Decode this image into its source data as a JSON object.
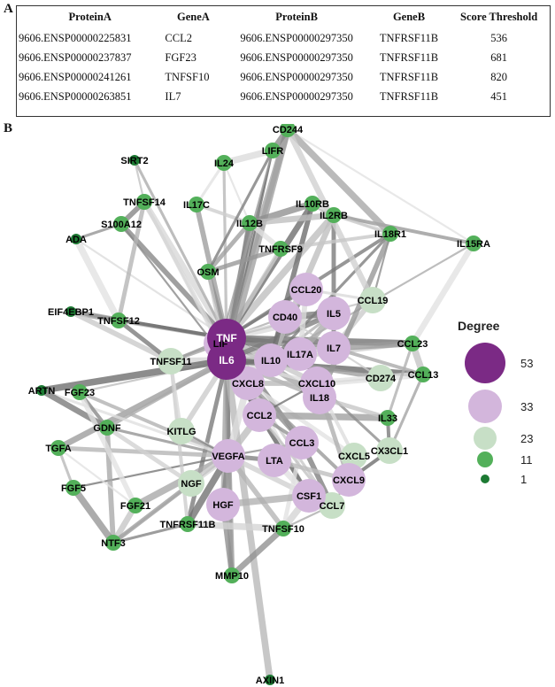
{
  "panels": {
    "a": "A",
    "b": "B"
  },
  "table": {
    "headers": [
      "ProteinA",
      "GeneA",
      "ProteinB",
      "GeneB",
      "Score Threshold"
    ],
    "rows": [
      [
        "9606.ENSP00000225831",
        "CCL2",
        "9606.ENSP00000297350",
        "TNFRSF11B",
        "536"
      ],
      [
        "9606.ENSP00000237837",
        "FGF23",
        "9606.ENSP00000297350",
        "TNFRSF11B",
        "681"
      ],
      [
        "9606.ENSP00000241261",
        "TNFSF10",
        "9606.ENSP00000297350",
        "TNFRSF11B",
        "820"
      ],
      [
        "9606.ENSP00000263851",
        "IL7",
        "9606.ENSP00000297350",
        "TNFRSF11B",
        "451"
      ]
    ]
  },
  "legend": {
    "title": "Degree",
    "levels": [
      {
        "value": "53",
        "color": "#7b2a85"
      },
      {
        "value": "33",
        "color": "#d3b6dc"
      },
      {
        "value": "23",
        "color": "#c7dfc6"
      },
      {
        "value": "11",
        "color": "#53b05a"
      },
      {
        "value": "1",
        "color": "#1d7a33"
      }
    ]
  },
  "network": {
    "nodes": [
      {
        "label": "CD244",
        "tier": "11"
      },
      {
        "label": "SIRT2",
        "tier": "1"
      },
      {
        "label": "IL24",
        "tier": "11"
      },
      {
        "label": "LIFR",
        "tier": "11"
      },
      {
        "label": "TNFSF14",
        "tier": "11"
      },
      {
        "label": "IL17C",
        "tier": "11"
      },
      {
        "label": "IL10RB",
        "tier": "11"
      },
      {
        "label": "S100A12",
        "tier": "11"
      },
      {
        "label": "IL12B",
        "tier": "11"
      },
      {
        "label": "IL2RB",
        "tier": "11"
      },
      {
        "label": "ADA",
        "tier": "1"
      },
      {
        "label": "IL18R1",
        "tier": "11"
      },
      {
        "label": "IL15RA",
        "tier": "11"
      },
      {
        "label": "TNFRSF9",
        "tier": "11"
      },
      {
        "label": "OSM",
        "tier": "11"
      },
      {
        "label": "CCL20",
        "tier": "33"
      },
      {
        "label": "CCL19",
        "tier": "23"
      },
      {
        "label": "EIF4EBP1",
        "tier": "1"
      },
      {
        "label": "TNFSF12",
        "tier": "11"
      },
      {
        "label": "CD40",
        "tier": "33"
      },
      {
        "label": "IL5",
        "tier": "33"
      },
      {
        "label": "TNF",
        "tier": "53"
      },
      {
        "label": "LIF",
        "tier": "33"
      },
      {
        "label": "IL6",
        "tier": "53"
      },
      {
        "label": "IL10",
        "tier": "33"
      },
      {
        "label": "IL17A",
        "tier": "33"
      },
      {
        "label": "IL7",
        "tier": "33"
      },
      {
        "label": "CCL23",
        "tier": "11"
      },
      {
        "label": "TNFSF11",
        "tier": "23"
      },
      {
        "label": "CD274",
        "tier": "23"
      },
      {
        "label": "CCL13",
        "tier": "11"
      },
      {
        "label": "CXCL8",
        "tier": "33"
      },
      {
        "label": "CXCL10",
        "tier": "33"
      },
      {
        "label": "IL18",
        "tier": "33"
      },
      {
        "label": "ARTN",
        "tier": "1"
      },
      {
        "label": "FGF23",
        "tier": "11"
      },
      {
        "label": "CCL2",
        "tier": "33"
      },
      {
        "label": "IL33",
        "tier": "11"
      },
      {
        "label": "GDNF",
        "tier": "11"
      },
      {
        "label": "KITLG",
        "tier": "23"
      },
      {
        "label": "TGFA",
        "tier": "11"
      },
      {
        "label": "VEGFA",
        "tier": "33"
      },
      {
        "label": "CCL3",
        "tier": "33"
      },
      {
        "label": "CXCL5",
        "tier": "23"
      },
      {
        "label": "CX3CL1",
        "tier": "23"
      },
      {
        "label": "LTA",
        "tier": "33"
      },
      {
        "label": "FGF5",
        "tier": "11"
      },
      {
        "label": "NGF",
        "tier": "23"
      },
      {
        "label": "CXCL9",
        "tier": "33"
      },
      {
        "label": "FGF21",
        "tier": "11"
      },
      {
        "label": "HGF",
        "tier": "33"
      },
      {
        "label": "CSF1",
        "tier": "33"
      },
      {
        "label": "CCL7",
        "tier": "23"
      },
      {
        "label": "TNFRSF11B",
        "tier": "11"
      },
      {
        "label": "NTF3",
        "tier": "11"
      },
      {
        "label": "TNFSF10",
        "tier": "11"
      },
      {
        "label": "MMP10",
        "tier": "11"
      },
      {
        "label": "AXIN1",
        "tier": "1"
      }
    ],
    "edges": [
      [
        "TNF",
        "IL6"
      ],
      [
        "TNF",
        "IL10"
      ],
      [
        "TNF",
        "CXCL8"
      ],
      [
        "TNF",
        "IL17A"
      ],
      [
        "TNF",
        "CCL2"
      ],
      [
        "TNF",
        "VEGFA"
      ],
      [
        "TNF",
        "CCL20"
      ],
      [
        "TNF",
        "CD40"
      ],
      [
        "TNF",
        "IL5"
      ],
      [
        "TNF",
        "IL7"
      ],
      [
        "TNF",
        "LIF"
      ],
      [
        "TNF",
        "OSM"
      ],
      [
        "TNF",
        "IL12B"
      ],
      [
        "TNF",
        "IL24"
      ],
      [
        "TNF",
        "LIFR"
      ],
      [
        "TNF",
        "CD244"
      ],
      [
        "TNF",
        "TNFSF14"
      ],
      [
        "TNF",
        "S100A12"
      ],
      [
        "TNF",
        "TNFSF12"
      ],
      [
        "TNF",
        "EIF4EBP1"
      ],
      [
        "TNF",
        "TNFSF11"
      ],
      [
        "TNF",
        "CCL19"
      ],
      [
        "TNF",
        "CCL23"
      ],
      [
        "TNF",
        "IL18"
      ],
      [
        "TNF",
        "CXCL10"
      ],
      [
        "TNF",
        "CCL3"
      ],
      [
        "TNF",
        "HGF"
      ],
      [
        "TNF",
        "CSF1"
      ],
      [
        "TNF",
        "MMP10"
      ],
      [
        "TNF",
        "IL2RB"
      ],
      [
        "TNF",
        "IL10RB"
      ],
      [
        "TNF",
        "IL17C"
      ],
      [
        "TNF",
        "TNFRSF9"
      ],
      [
        "TNF",
        "IL18R1"
      ],
      [
        "TNF",
        "SIRT2"
      ],
      [
        "TNF",
        "ADA"
      ],
      [
        "IL6",
        "IL10"
      ],
      [
        "IL6",
        "CXCL8"
      ],
      [
        "IL6",
        "VEGFA"
      ],
      [
        "IL6",
        "CCL2"
      ],
      [
        "IL6",
        "OSM"
      ],
      [
        "IL6",
        "LIF"
      ],
      [
        "IL6",
        "IL17A"
      ],
      [
        "IL6",
        "TNFSF11"
      ],
      [
        "IL6",
        "IL12B"
      ],
      [
        "IL6",
        "HGF"
      ],
      [
        "IL6",
        "CSF1"
      ],
      [
        "IL6",
        "MMP10"
      ],
      [
        "IL6",
        "IL24"
      ],
      [
        "IL6",
        "LIFR"
      ],
      [
        "IL6",
        "CD244"
      ],
      [
        "IL6",
        "IL7"
      ],
      [
        "IL6",
        "IL5"
      ],
      [
        "IL6",
        "IL18"
      ],
      [
        "IL6",
        "CXCL10"
      ],
      [
        "IL6",
        "CCL3"
      ],
      [
        "IL6",
        "FGF23"
      ],
      [
        "IL6",
        "ARTN"
      ],
      [
        "IL6",
        "TGFA"
      ],
      [
        "IL6",
        "KITLG"
      ],
      [
        "IL6",
        "TNFRSF11B"
      ],
      [
        "IL6",
        "GDNF"
      ],
      [
        "IL6",
        "TNFSF14"
      ],
      [
        "IL6",
        "S100A12"
      ],
      [
        "IL6",
        "AXIN1"
      ],
      [
        "IL6",
        "CCL13"
      ],
      [
        "IL10",
        "IL17A"
      ],
      [
        "IL10",
        "CXCL10"
      ],
      [
        "IL10",
        "CCL20"
      ],
      [
        "IL10",
        "IL5"
      ],
      [
        "IL10",
        "IL7"
      ],
      [
        "IL10",
        "CD40"
      ],
      [
        "IL10",
        "IL2RB"
      ],
      [
        "IL10",
        "IL10RB"
      ],
      [
        "IL10",
        "CD274"
      ],
      [
        "IL10",
        "CCL23"
      ],
      [
        "IL10",
        "IL18R1"
      ],
      [
        "IL10",
        "IL15RA"
      ],
      [
        "CXCL8",
        "VEGFA"
      ],
      [
        "CXCL8",
        "CCL2"
      ],
      [
        "CXCL8",
        "CXCL10"
      ],
      [
        "CXCL8",
        "CXCL5"
      ],
      [
        "CXCL8",
        "CXCL9"
      ],
      [
        "CXCL8",
        "CCL7"
      ],
      [
        "VEGFA",
        "FGF5"
      ],
      [
        "VEGFA",
        "FGF21"
      ],
      [
        "VEGFA",
        "NGF"
      ],
      [
        "VEGFA",
        "HGF"
      ],
      [
        "VEGFA",
        "TGFA"
      ],
      [
        "VEGFA",
        "KITLG"
      ],
      [
        "VEGFA",
        "GDNF"
      ],
      [
        "VEGFA",
        "NTF3"
      ],
      [
        "VEGFA",
        "TNFRSF11B"
      ],
      [
        "VEGFA",
        "MMP10"
      ],
      [
        "VEGFA",
        "CSF1"
      ],
      [
        "VEGFA",
        "LTA"
      ],
      [
        "VEGFA",
        "FGF23"
      ],
      [
        "VEGFA",
        "ARTN"
      ],
      [
        "VEGFA",
        "CCL3"
      ],
      [
        "VEGFA",
        "CCL2"
      ],
      [
        "GDNF",
        "ARTN"
      ],
      [
        "GDNF",
        "NTF3"
      ],
      [
        "GDNF",
        "NGF"
      ],
      [
        "GDNF",
        "FGF23"
      ],
      [
        "TGFA",
        "FGF5"
      ],
      [
        "TGFA",
        "FGF21"
      ],
      [
        "FGF5",
        "NTF3"
      ],
      [
        "FGF21",
        "NTF3"
      ],
      [
        "FGF23",
        "FGF21"
      ],
      [
        "NGF",
        "NTF3"
      ],
      [
        "TNFRSF11B",
        "TNFSF11"
      ],
      [
        "TNFRSF11B",
        "NTF3"
      ],
      [
        "TNFSF10",
        "CCL7"
      ],
      [
        "TNFSF10",
        "CSF1"
      ],
      [
        "TNFSF10",
        "MMP10"
      ],
      [
        "TNFSF10",
        "VEGFA"
      ],
      [
        "TNFSF10",
        "CCL3"
      ],
      [
        "CCL2",
        "CCL3"
      ],
      [
        "CCL2",
        "CCL7"
      ],
      [
        "CCL2",
        "CXCL10"
      ],
      [
        "CCL2",
        "IL33"
      ],
      [
        "CCL3",
        "LTA"
      ],
      [
        "CCL3",
        "CCL7"
      ],
      [
        "CXCL10",
        "CXCL9"
      ],
      [
        "CXCL10",
        "CXCL5"
      ],
      [
        "CXCL10",
        "CX3CL1"
      ],
      [
        "CXCL10",
        "CD274"
      ],
      [
        "CXCL10",
        "CCL13"
      ],
      [
        "IL7",
        "CCL23"
      ],
      [
        "IL7",
        "CCL19"
      ],
      [
        "IL7",
        "IL2RB"
      ],
      [
        "IL7",
        "CCL13"
      ],
      [
        "CCL19",
        "CCL20"
      ],
      [
        "CCL19",
        "IL18R1"
      ],
      [
        "CCL23",
        "CCL13"
      ],
      [
        "CCL23",
        "IL15RA"
      ],
      [
        "IL18",
        "IL18R1"
      ],
      [
        "IL18",
        "IL33"
      ],
      [
        "IL33",
        "CX3CL1"
      ],
      [
        "IL33",
        "CCL23"
      ],
      [
        "IL12B",
        "IL24"
      ],
      [
        "IL12B",
        "IL10RB"
      ],
      [
        "IL12B",
        "IL2RB"
      ],
      [
        "IL12B",
        "TNFRSF9"
      ],
      [
        "IL12B",
        "OSM"
      ],
      [
        "IL12B",
        "IL17C"
      ],
      [
        "LIFR",
        "OSM"
      ],
      [
        "LIFR",
        "LIF"
      ],
      [
        "LIFR",
        "IL24"
      ],
      [
        "LIFR",
        "CD244"
      ],
      [
        "IL10RB",
        "IL2RB"
      ],
      [
        "IL10RB",
        "IL18R1"
      ],
      [
        "IL2RB",
        "IL15RA"
      ],
      [
        "IL2RB",
        "IL18R1"
      ],
      [
        "IL15RA",
        "CD244"
      ],
      [
        "CD244",
        "IL18R1"
      ],
      [
        "CD244",
        "CCL19"
      ],
      [
        "TNFSF14",
        "S100A12"
      ],
      [
        "TNFSF14",
        "TNFSF12"
      ],
      [
        "TNFSF14",
        "LIF"
      ],
      [
        "S100A12",
        "ADA"
      ],
      [
        "SIRT2",
        "TNFSF14"
      ],
      [
        "ADA",
        "TNFSF12"
      ],
      [
        "EIF4EBP1",
        "TNFSF12"
      ],
      [
        "EIF4EBP1",
        "TNFSF11"
      ],
      [
        "TNFSF12",
        "TNFSF11"
      ],
      [
        "TNFSF11",
        "LIF"
      ],
      [
        "KITLG",
        "TNFSF11"
      ],
      [
        "KITLG",
        "VEGFA"
      ],
      [
        "CSF1",
        "HGF"
      ],
      [
        "CSF1",
        "LTA"
      ],
      [
        "HGF",
        "MMP10"
      ],
      [
        "LTA",
        "CXCL9"
      ],
      [
        "CX3CL1",
        "CXCL9"
      ],
      [
        "CX3CL1",
        "CCL13"
      ],
      [
        "CD274",
        "CD40"
      ],
      [
        "CD40",
        "IL5"
      ],
      [
        "IL5",
        "IL17A"
      ],
      [
        "CCL20",
        "IL17A"
      ],
      [
        "OSM",
        "TNFRSF9"
      ],
      [
        "TNFRSF9",
        "IL18R1"
      ],
      [
        "IL17C",
        "IL24"
      ],
      [
        "CCL7",
        "CXCL9"
      ],
      [
        "TNFSF10",
        "TNFRSF11B"
      ]
    ]
  }
}
